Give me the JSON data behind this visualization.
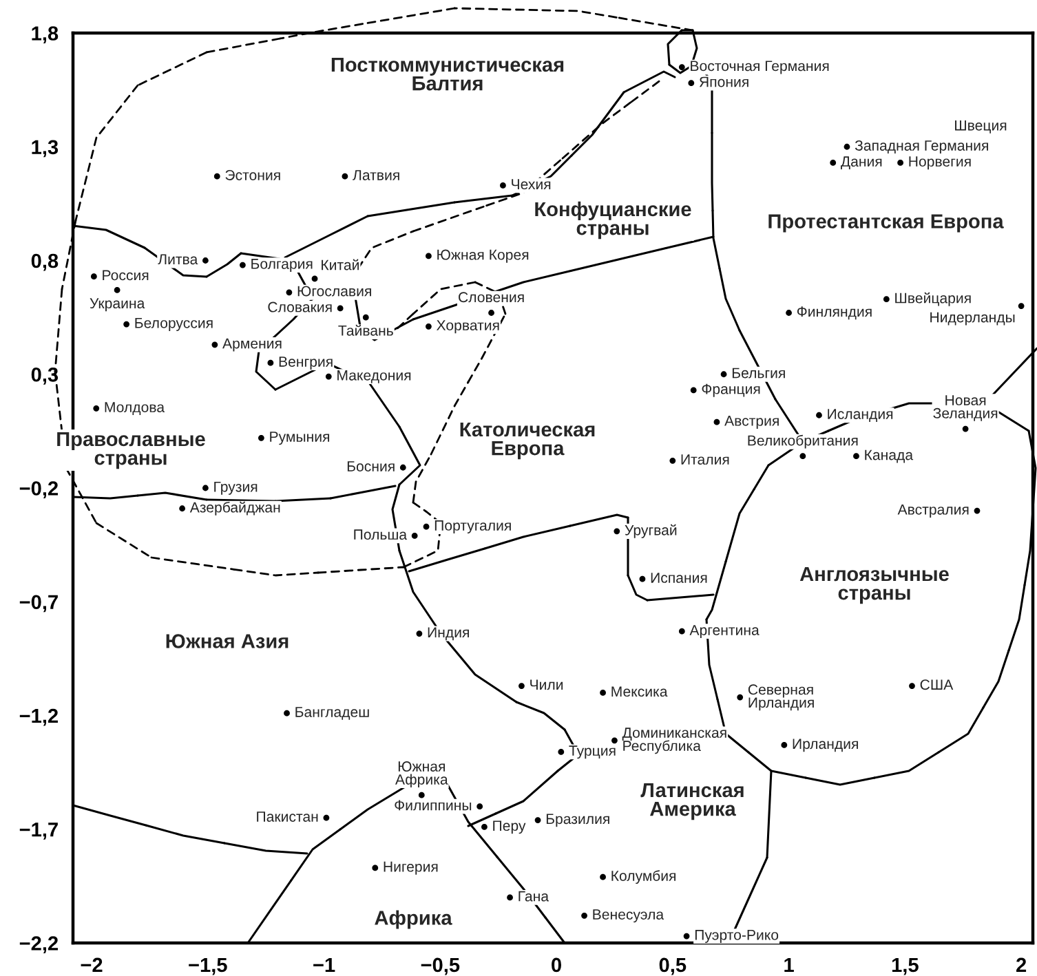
{
  "chart_data": {
    "type": "scatter",
    "marker": "circle",
    "color": "#000000",
    "grid": false,
    "xlim": [
      -2.08,
      2.05
    ],
    "ylim": [
      -2.2,
      1.8
    ],
    "xticks": [
      {
        "value": -2,
        "label": "−2"
      },
      {
        "value": -1.5,
        "label": "−1,5"
      },
      {
        "value": -1,
        "label": "−1"
      },
      {
        "value": -0.5,
        "label": "−0,5"
      },
      {
        "value": 0,
        "label": "0"
      },
      {
        "value": 0.5,
        "label": "0,5"
      },
      {
        "value": 1,
        "label": "1"
      },
      {
        "value": 1.5,
        "label": "1,5"
      },
      {
        "value": 2,
        "label": "2"
      }
    ],
    "yticks": [
      {
        "value": 1.8,
        "label": "1,8"
      },
      {
        "value": 1.3,
        "label": "1,3"
      },
      {
        "value": 0.8,
        "label": "0,8"
      },
      {
        "value": 0.3,
        "label": "0,3"
      },
      {
        "value": -0.2,
        "label": "−0,2"
      },
      {
        "value": -0.7,
        "label": "−0,7"
      },
      {
        "value": -1.2,
        "label": "−1,2"
      },
      {
        "value": -1.7,
        "label": "−1,7"
      },
      {
        "value": -2.2,
        "label": "−2,2"
      }
    ],
    "x": [
      -1.46,
      -0.91,
      -0.23,
      -1.51,
      -1.99,
      -1.35,
      -1.89,
      -1.15,
      -1.04,
      -0.55,
      -0.82,
      -0.93,
      -1.85,
      -1.47,
      -1.23,
      -0.55,
      -0.28,
      -0.98,
      -1.98,
      -1.27,
      -0.66,
      -1.51,
      -1.61,
      -0.61,
      -0.56,
      0.54,
      0.58,
      1.25,
      1.19,
      1.48,
      1.42,
      2.0,
      1.0,
      0.72,
      0.59,
      0.69,
      0.5,
      1.13,
      1.06,
      1.29,
      1.76,
      1.81,
      0.26,
      0.37,
      0.54,
      0.79,
      1.53,
      0.98,
      -0.15,
      0.2,
      0.25,
      0.02,
      -0.08,
      0.2,
      0.12,
      0.56,
      -0.59,
      -1.16,
      -0.33,
      -0.58,
      -0.99,
      -0.78,
      -0.2,
      -0.31
    ],
    "values": [
      1.17,
      1.17,
      1.13,
      0.8,
      0.73,
      0.78,
      0.67,
      0.66,
      0.72,
      0.82,
      0.55,
      0.59,
      0.52,
      0.43,
      0.35,
      0.51,
      0.57,
      0.29,
      0.15,
      0.02,
      -0.11,
      -0.2,
      -0.29,
      -0.41,
      -0.37,
      1.65,
      1.58,
      1.3,
      1.23,
      1.23,
      0.63,
      0.6,
      0.57,
      0.3,
      0.23,
      0.09,
      -0.08,
      0.12,
      -0.06,
      -0.06,
      0.06,
      -0.3,
      -0.39,
      -0.6,
      -0.83,
      -1.12,
      -1.07,
      -1.33,
      -1.07,
      -1.1,
      -1.31,
      -1.36,
      -1.66,
      -1.91,
      -2.08,
      -2.17,
      -0.84,
      -1.19,
      -1.6,
      -1.55,
      -1.65,
      -1.87,
      -2.0,
      -1.69
    ],
    "value_labels": [
      "Эстония",
      "Латвия",
      "Чехия",
      "Литва",
      "Россия",
      "Болгария",
      "Украина",
      "Югославия",
      "Китай",
      "Южная Корея",
      "Тайвань",
      "Словакия",
      "Белоруссия",
      "Армения",
      "Венгрия",
      "Хорватия",
      "Словения",
      "Македония",
      "Молдова",
      "Румыния",
      "Босния",
      "Грузия",
      "Азербайджан",
      "Польша",
      "Португалия",
      "Восточная Германия",
      "Япония",
      "Западная Германия",
      "Дания",
      "Норвегия",
      "Швейцария",
      "Нидерланды",
      "Финляндия",
      "Бельгия",
      "Франция",
      "Австрия",
      "Италия",
      "Исландия",
      "Великобритания",
      "Канада",
      "Новая\nЗеландия",
      "Австралия",
      "Уругвай",
      "Испания",
      "Аргентина",
      "Северная\nИрландия",
      "США",
      "Ирландия",
      "Чили",
      "Мексика",
      "Доминиканская\nРеспублика",
      "Турция",
      "Бразилия",
      "Колумбия",
      "Венесуэла",
      "Пуэрто-Рико",
      "Индия",
      "Бангладеш",
      "Филиппины",
      "Южная\nАфрика",
      "Пакистан",
      "Нигерия",
      "Гана",
      "Перу"
    ],
    "annotations": [
      "Посткоммунистическая\nБалтия",
      "Конфуцианские\nстраны",
      "Протестантская Европа",
      "Православные\nстраны",
      "Католическая\nЕвропа",
      "Англоязычные\nстраны",
      "Южная Азия",
      "Латинская\nАмерика",
      "Африка",
      "Швеция"
    ]
  }
}
